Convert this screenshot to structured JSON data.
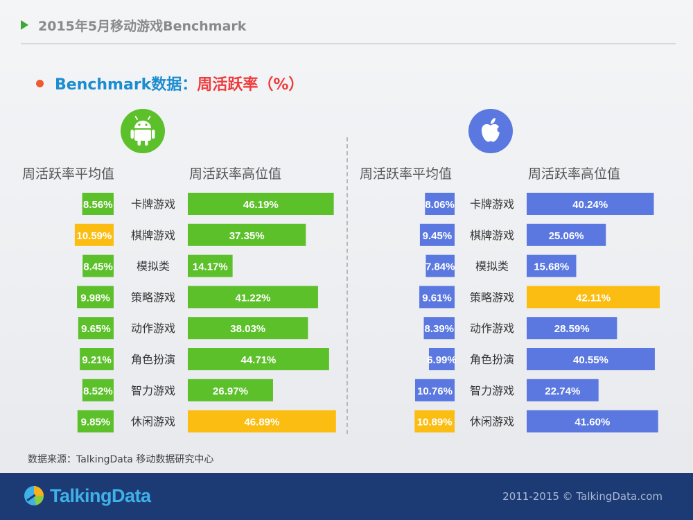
{
  "page_title": "2015年5月移动游戏Benchmark",
  "subtitle": {
    "prefix": "Benchmark数据：",
    "highlight": "周活跃率（%）"
  },
  "source": "数据来源：TalkingData 移动数据研究中心",
  "footer": {
    "brand": "TalkingData",
    "copyright": "2011-2015 © TalkingData.com"
  },
  "colors": {
    "android": "#5cc02a",
    "ios": "#5a78e0",
    "highlight": "#fbbd11"
  },
  "icons": {
    "android": "android-robot-icon",
    "ios": "apple-icon",
    "brand": "talkingdata-logo-icon"
  },
  "chart_data": [
    {
      "type": "bar",
      "platform": "Android",
      "categories": [
        "卡牌游戏",
        "棋牌游戏",
        "模拟类",
        "策略游戏",
        "动作游戏",
        "角色扮演",
        "智力游戏",
        "休闲游戏"
      ],
      "series": [
        {
          "name": "周活跃率平均值",
          "values": [
            8.56,
            10.59,
            8.45,
            9.98,
            9.65,
            9.21,
            8.52,
            9.85
          ],
          "labels": [
            "8.56%",
            "10.59%",
            "8.45%",
            "9.98%",
            "9.65%",
            "9.21%",
            "8.52%",
            "9.85%"
          ],
          "highlight_index": 1
        },
        {
          "name": "周活跃率高位值",
          "values": [
            46.19,
            37.35,
            14.17,
            41.22,
            38.03,
            44.71,
            26.97,
            46.89
          ],
          "labels": [
            "46.19%",
            "37.35%",
            "14.17%",
            "41.22%",
            "38.03%",
            "44.71%",
            "26.97%",
            "46.89%"
          ],
          "highlight_index": 7
        }
      ]
    },
    {
      "type": "bar",
      "platform": "iOS",
      "categories": [
        "卡牌游戏",
        "棋牌游戏",
        "模拟类",
        "策略游戏",
        "动作游戏",
        "角色扮演",
        "智力游戏",
        "休闲游戏"
      ],
      "series": [
        {
          "name": "周活跃率平均值",
          "values": [
            8.06,
            9.45,
            7.84,
            9.61,
            8.39,
            6.99,
            10.76,
            10.89
          ],
          "labels": [
            "8.06%",
            "9.45%",
            "7.84%",
            "9.61%",
            "8.39%",
            "6.99%",
            "10.76%",
            "10.89%"
          ],
          "highlight_index": 7
        },
        {
          "name": "周活跃率高位值",
          "values": [
            40.24,
            25.06,
            15.68,
            42.11,
            28.59,
            40.55,
            22.74,
            41.6
          ],
          "labels": [
            "40.24%",
            "25.06%",
            "15.68%",
            "42.11%",
            "28.59%",
            "40.55%",
            "22.74%",
            "41.60%"
          ],
          "highlight_index": 3
        }
      ]
    }
  ]
}
